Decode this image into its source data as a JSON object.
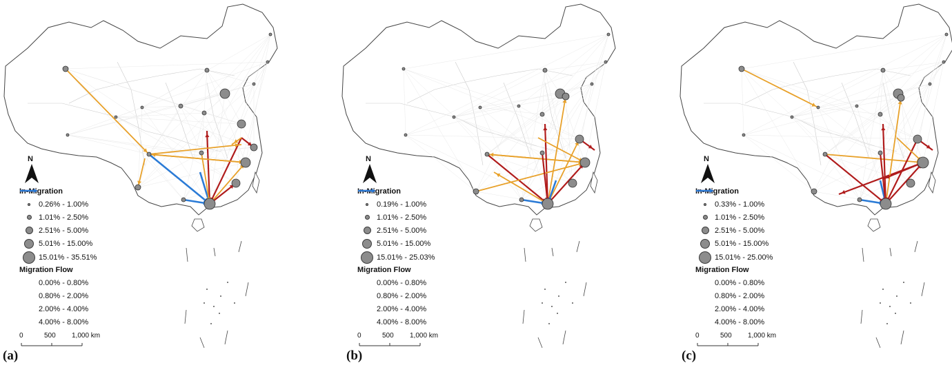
{
  "panels": [
    {
      "letter": "(a)",
      "in_migration_title": "In-Migration",
      "in_migration_classes": [
        "0.26% - 1.00%",
        "1.01% - 2.50%",
        "2.51% - 5.00%",
        "5.01% - 15.00%",
        "15.01% - 35.51%"
      ],
      "flow_title": "Migration Flow",
      "flow_classes": [
        "0.00% - 0.80%",
        "0.80% - 2.00%",
        "2.00% - 4.00%",
        "4.00% - 8.00%"
      ],
      "north_label": "N",
      "scale_labels": [
        "0",
        "500",
        "1,000 km"
      ]
    },
    {
      "letter": "(b)",
      "in_migration_title": "In-Migration",
      "in_migration_classes": [
        "0.19% - 1.00%",
        "1.01% - 2.50%",
        "2.51% - 5.00%",
        "5.01% - 15.00%",
        "15.01% - 25.03%"
      ],
      "flow_title": "Migration Flow",
      "flow_classes": [
        "0.00% - 0.80%",
        "0.80% - 2.00%",
        "2.00% - 4.00%",
        "4.00% - 8.00%"
      ],
      "north_label": "N",
      "scale_labels": [
        "0",
        "500",
        "1,000 km"
      ]
    },
    {
      "letter": "(c)",
      "in_migration_title": "In-Migration",
      "in_migration_classes": [
        "0.33% - 1.00%",
        "1.01% - 2.50%",
        "2.51% - 5.00%",
        "5.01% - 15.00%",
        "15.01% - 25.00%"
      ],
      "flow_title": "Migration Flow",
      "flow_classes": [
        "0.00% - 0.80%",
        "0.80% - 2.00%",
        "2.00% - 4.00%",
        "4.00% - 8.00%"
      ],
      "north_label": "N",
      "scale_labels": [
        "0",
        "500",
        "1,000 km"
      ]
    }
  ],
  "colors": {
    "flow_class_1": "#e8e8e8",
    "flow_class_2": "#e8a12a",
    "flow_class_3": "#b01c1c",
    "flow_class_4": "#2b7bd6",
    "node_fill": "#8c8c8c",
    "border": "#444444"
  }
}
